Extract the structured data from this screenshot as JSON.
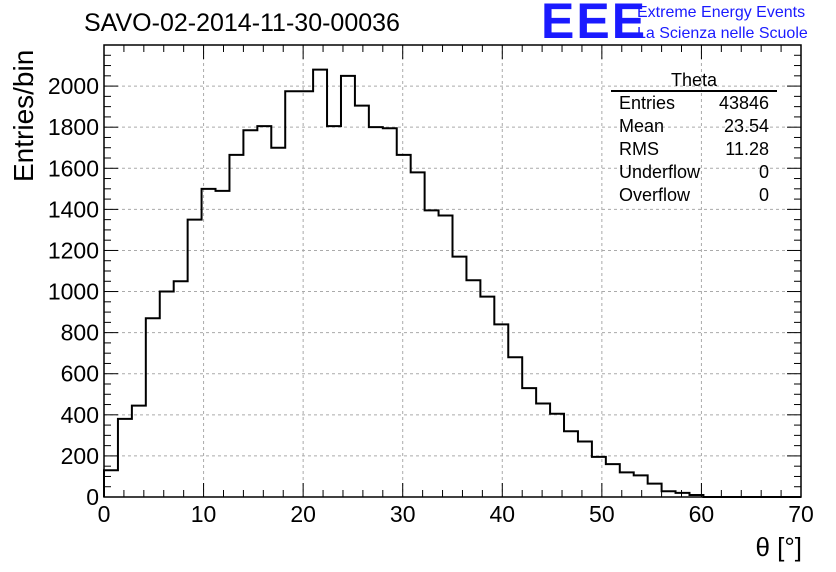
{
  "title": "SAVO-02-2014-11-30-00036",
  "logo": {
    "mark": "EEE",
    "line1": "Extreme Energy Events",
    "line2": "La Scienza nelle Scuole",
    "color": "#1a1aff"
  },
  "stats": {
    "title": "Theta",
    "rows": [
      {
        "label": "Entries",
        "value": "43846"
      },
      {
        "label": "Mean",
        "value": "23.54"
      },
      {
        "label": "RMS",
        "value": "11.28"
      },
      {
        "label": "Underflow",
        "value": "0"
      },
      {
        "label": "Overflow",
        "value": "0"
      }
    ]
  },
  "chart_data": {
    "type": "bar",
    "title": "SAVO-02-2014-11-30-00036",
    "xlabel": "θ [°]",
    "ylabel": "Entries/bin",
    "xlim": [
      0,
      70
    ],
    "ylim": [
      0,
      2200
    ],
    "grid": true,
    "x_ticks": [
      0,
      10,
      20,
      30,
      40,
      50,
      60,
      70
    ],
    "y_ticks": [
      0,
      200,
      400,
      600,
      800,
      1000,
      1200,
      1400,
      1600,
      1800,
      2000
    ],
    "bin_width": 1.4,
    "values": [
      130,
      380,
      445,
      870,
      1000,
      1050,
      1350,
      1500,
      1490,
      1665,
      1785,
      1805,
      1700,
      1975,
      1975,
      2080,
      1805,
      2050,
      1905,
      1800,
      1795,
      1665,
      1580,
      1395,
      1370,
      1170,
      1055,
      975,
      840,
      680,
      530,
      455,
      405,
      320,
      270,
      195,
      160,
      120,
      105,
      65,
      28,
      20,
      10,
      0,
      0,
      0,
      0,
      0,
      0,
      0
    ]
  }
}
